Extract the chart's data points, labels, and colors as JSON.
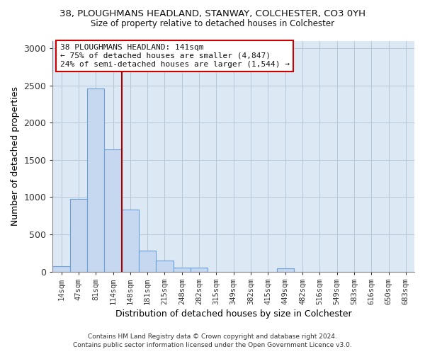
{
  "title": "38, PLOUGHMANS HEADLAND, STANWAY, COLCHESTER, CO3 0YH",
  "subtitle": "Size of property relative to detached houses in Colchester",
  "xlabel": "Distribution of detached houses by size in Colchester",
  "ylabel": "Number of detached properties",
  "footnote1": "Contains HM Land Registry data © Crown copyright and database right 2024.",
  "footnote2": "Contains public sector information licensed under the Open Government Licence v3.0.",
  "annotation_line1": "38 PLOUGHMANS HEADLAND: 141sqm",
  "annotation_line2": "← 75% of detached houses are smaller (4,847)",
  "annotation_line3": "24% of semi-detached houses are larger (1,544) →",
  "bar_labels": [
    "14sqm",
    "47sqm",
    "81sqm",
    "114sqm",
    "148sqm",
    "181sqm",
    "215sqm",
    "248sqm",
    "282sqm",
    "315sqm",
    "349sqm",
    "382sqm",
    "415sqm",
    "449sqm",
    "482sqm",
    "516sqm",
    "549sqm",
    "583sqm",
    "616sqm",
    "650sqm",
    "683sqm"
  ],
  "bar_values": [
    75,
    975,
    2460,
    1640,
    835,
    285,
    145,
    55,
    50,
    0,
    0,
    0,
    0,
    40,
    0,
    0,
    0,
    0,
    0,
    0,
    0
  ],
  "bar_color": "#c5d8f0",
  "bar_edge_color": "#6a9fd8",
  "vline_color": "#aa0000",
  "ylim": [
    0,
    3100
  ],
  "yticks": [
    0,
    500,
    1000,
    1500,
    2000,
    2500,
    3000
  ],
  "ax_facecolor": "#dde8f5",
  "background_color": "#ffffff",
  "grid_color": "#b8c8d8"
}
